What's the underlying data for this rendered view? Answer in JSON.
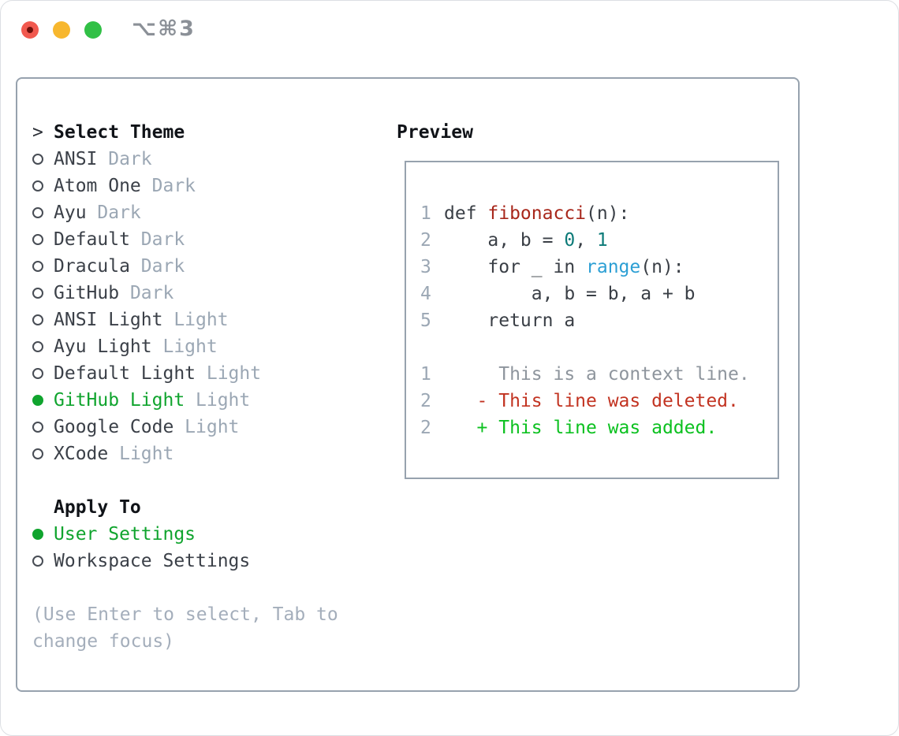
{
  "titlebar": {
    "shortcut_label": "⌥⌘3",
    "buttons": [
      "close",
      "minimize",
      "maximize"
    ]
  },
  "colors": {
    "selection_green": "#10a42e",
    "added_green": "#0cc120",
    "deleted_red": "#c23321",
    "function_red": "#a8271b",
    "number_teal": "#0c7a78",
    "builtin_blue": "#2c9fd4",
    "muted_gray": "#9ba7b4",
    "panel_border": "#97a2ae"
  },
  "theme_panel": {
    "prompt": ">",
    "title": "Select Theme",
    "themes": [
      {
        "name": "ANSI",
        "variant": "Dark",
        "selected": false
      },
      {
        "name": "Atom One",
        "variant": "Dark",
        "selected": false
      },
      {
        "name": "Ayu",
        "variant": "Dark",
        "selected": false
      },
      {
        "name": "Default",
        "variant": "Dark",
        "selected": false
      },
      {
        "name": "Dracula",
        "variant": "Dark",
        "selected": false
      },
      {
        "name": "GitHub",
        "variant": "Dark",
        "selected": false
      },
      {
        "name": "ANSI Light",
        "variant": "Light",
        "selected": false
      },
      {
        "name": "Ayu Light",
        "variant": "Light",
        "selected": false
      },
      {
        "name": "Default Light",
        "variant": "Light",
        "selected": false
      },
      {
        "name": "GitHub Light",
        "variant": "Light",
        "selected": true
      },
      {
        "name": "Google Code",
        "variant": "Light",
        "selected": false
      },
      {
        "name": "XCode",
        "variant": "Light",
        "selected": false
      }
    ],
    "apply_to": {
      "title": "Apply To",
      "options": [
        {
          "label": "User Settings",
          "selected": true
        },
        {
          "label": "Workspace Settings",
          "selected": false
        }
      ]
    },
    "hint_line1": "(Use Enter to select, Tab to",
    "hint_line2": "change focus)"
  },
  "preview": {
    "title": "Preview",
    "lines": [
      {
        "num": "1",
        "segments": [
          {
            "t": "def "
          },
          {
            "t": "fibonacci"
          },
          {
            "t": "(n):"
          }
        ]
      },
      {
        "num": "2",
        "segments": [
          {
            "t": "    a, b = "
          },
          {
            "t": "0"
          },
          {
            "t": ", "
          },
          {
            "t": "1"
          }
        ]
      },
      {
        "num": "3",
        "segments": [
          {
            "t": "    for _ in "
          },
          {
            "t": "range"
          },
          {
            "t": "(n):"
          }
        ]
      },
      {
        "num": "4",
        "segments": [
          {
            "t": "        a, b = b, a + b"
          }
        ]
      },
      {
        "num": "5",
        "segments": [
          {
            "t": "    return a"
          }
        ]
      },
      {
        "num": "",
        "segments": []
      },
      {
        "num": "1",
        "segments": [
          {
            "t": "     This is a context line."
          }
        ]
      },
      {
        "num": "2",
        "segments": [
          {
            "t": "   - This line was deleted."
          }
        ]
      },
      {
        "num": "2",
        "segments": [
          {
            "t": "   + This line was added."
          }
        ]
      }
    ]
  }
}
